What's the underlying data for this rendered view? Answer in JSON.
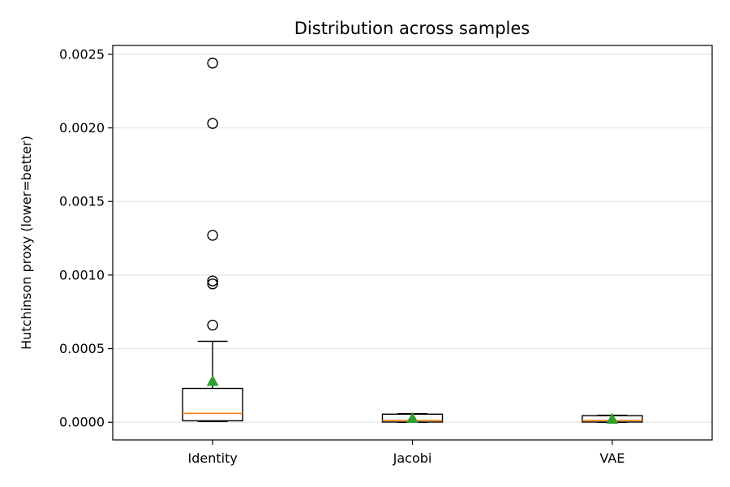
{
  "chart_data": {
    "type": "box",
    "title": "Distribution across samples",
    "xlabel": "",
    "ylabel": "Hutchinson proxy (lower=better)",
    "ylim": [
      -0.00012,
      0.00256
    ],
    "yticks": [
      0.0,
      0.0005,
      0.001,
      0.0015,
      0.002,
      0.0025
    ],
    "ytick_labels": [
      "0.0000",
      "0.0005",
      "0.0010",
      "0.0015",
      "0.0020",
      "0.0025"
    ],
    "grid": "horizontal",
    "categories": [
      "Identity",
      "Jacobi",
      "VAE"
    ],
    "boxes": [
      {
        "name": "Identity",
        "whisker_low": 5e-06,
        "q1": 1e-05,
        "median": 6e-05,
        "q3": 0.00023,
        "whisker_high": 0.00055,
        "mean": 0.00028,
        "outliers": [
          0.00244,
          0.00203,
          0.00127,
          0.00096,
          0.00094,
          0.00066
        ]
      },
      {
        "name": "Jacobi",
        "whisker_low": 0.0,
        "q1": 1.5e-06,
        "median": 1.2e-05,
        "q3": 5.5e-05,
        "whisker_high": 5.8e-05,
        "mean": 2.8e-05,
        "outliers": []
      },
      {
        "name": "VAE",
        "whisker_low": 0.0,
        "q1": 1.5e-06,
        "median": 1.2e-05,
        "q3": 4.5e-05,
        "whisker_high": 4.8e-05,
        "mean": 2.2e-05,
        "outliers": []
      }
    ],
    "colors": {
      "box": "#000000",
      "median": "#ff7f0e",
      "mean": "#2ca02c",
      "grid": "#e6e6e6",
      "outlier": "#000000"
    }
  }
}
